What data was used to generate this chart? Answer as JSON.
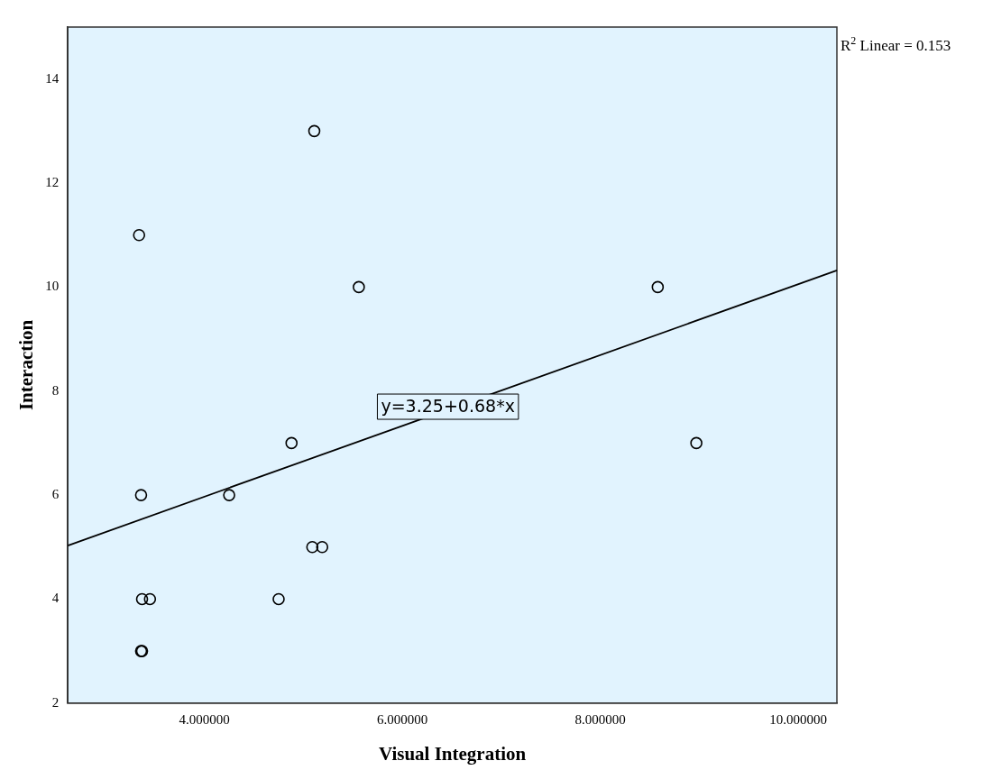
{
  "chart_data": {
    "type": "scatter",
    "xlabel": "Visual Integration",
    "ylabel": "Interaction",
    "xlim": [
      2.62,
      10.39
    ],
    "xticks": [
      {
        "value": 4,
        "label": "4.000000"
      },
      {
        "value": 6,
        "label": "6.000000"
      },
      {
        "value": 8,
        "label": "8.000000"
      },
      {
        "value": 10,
        "label": "10.000000"
      }
    ],
    "ylim": [
      2,
      15
    ],
    "yticks": [
      2,
      4,
      6,
      8,
      10,
      12,
      14
    ],
    "grid": false,
    "legend": false,
    "marker": "circle",
    "series": [
      {
        "color": "#000000",
        "x": [
          3.34,
          5.11,
          5.56,
          8.58,
          8.97,
          4.88,
          4.25,
          3.36,
          5.09,
          5.19,
          4.75,
          3.37,
          3.45,
          3.36,
          3.37
        ],
        "values": [
          11,
          13,
          10,
          10,
          7,
          7,
          6,
          6,
          5,
          5,
          4,
          4,
          4,
          3,
          3
        ]
      },
      {
        "type": "line",
        "color": "#000000",
        "marker": "none",
        "line_style": "solid",
        "x": [
          2.62,
          10.39
        ],
        "values": [
          5.03,
          10.32
        ]
      }
    ],
    "annotations": [
      {
        "text": "y=3.25+0.68*x",
        "x": 6.46,
        "y": 7.7
      },
      "R$^{2}$ Linear = 0.153"
    ]
  }
}
